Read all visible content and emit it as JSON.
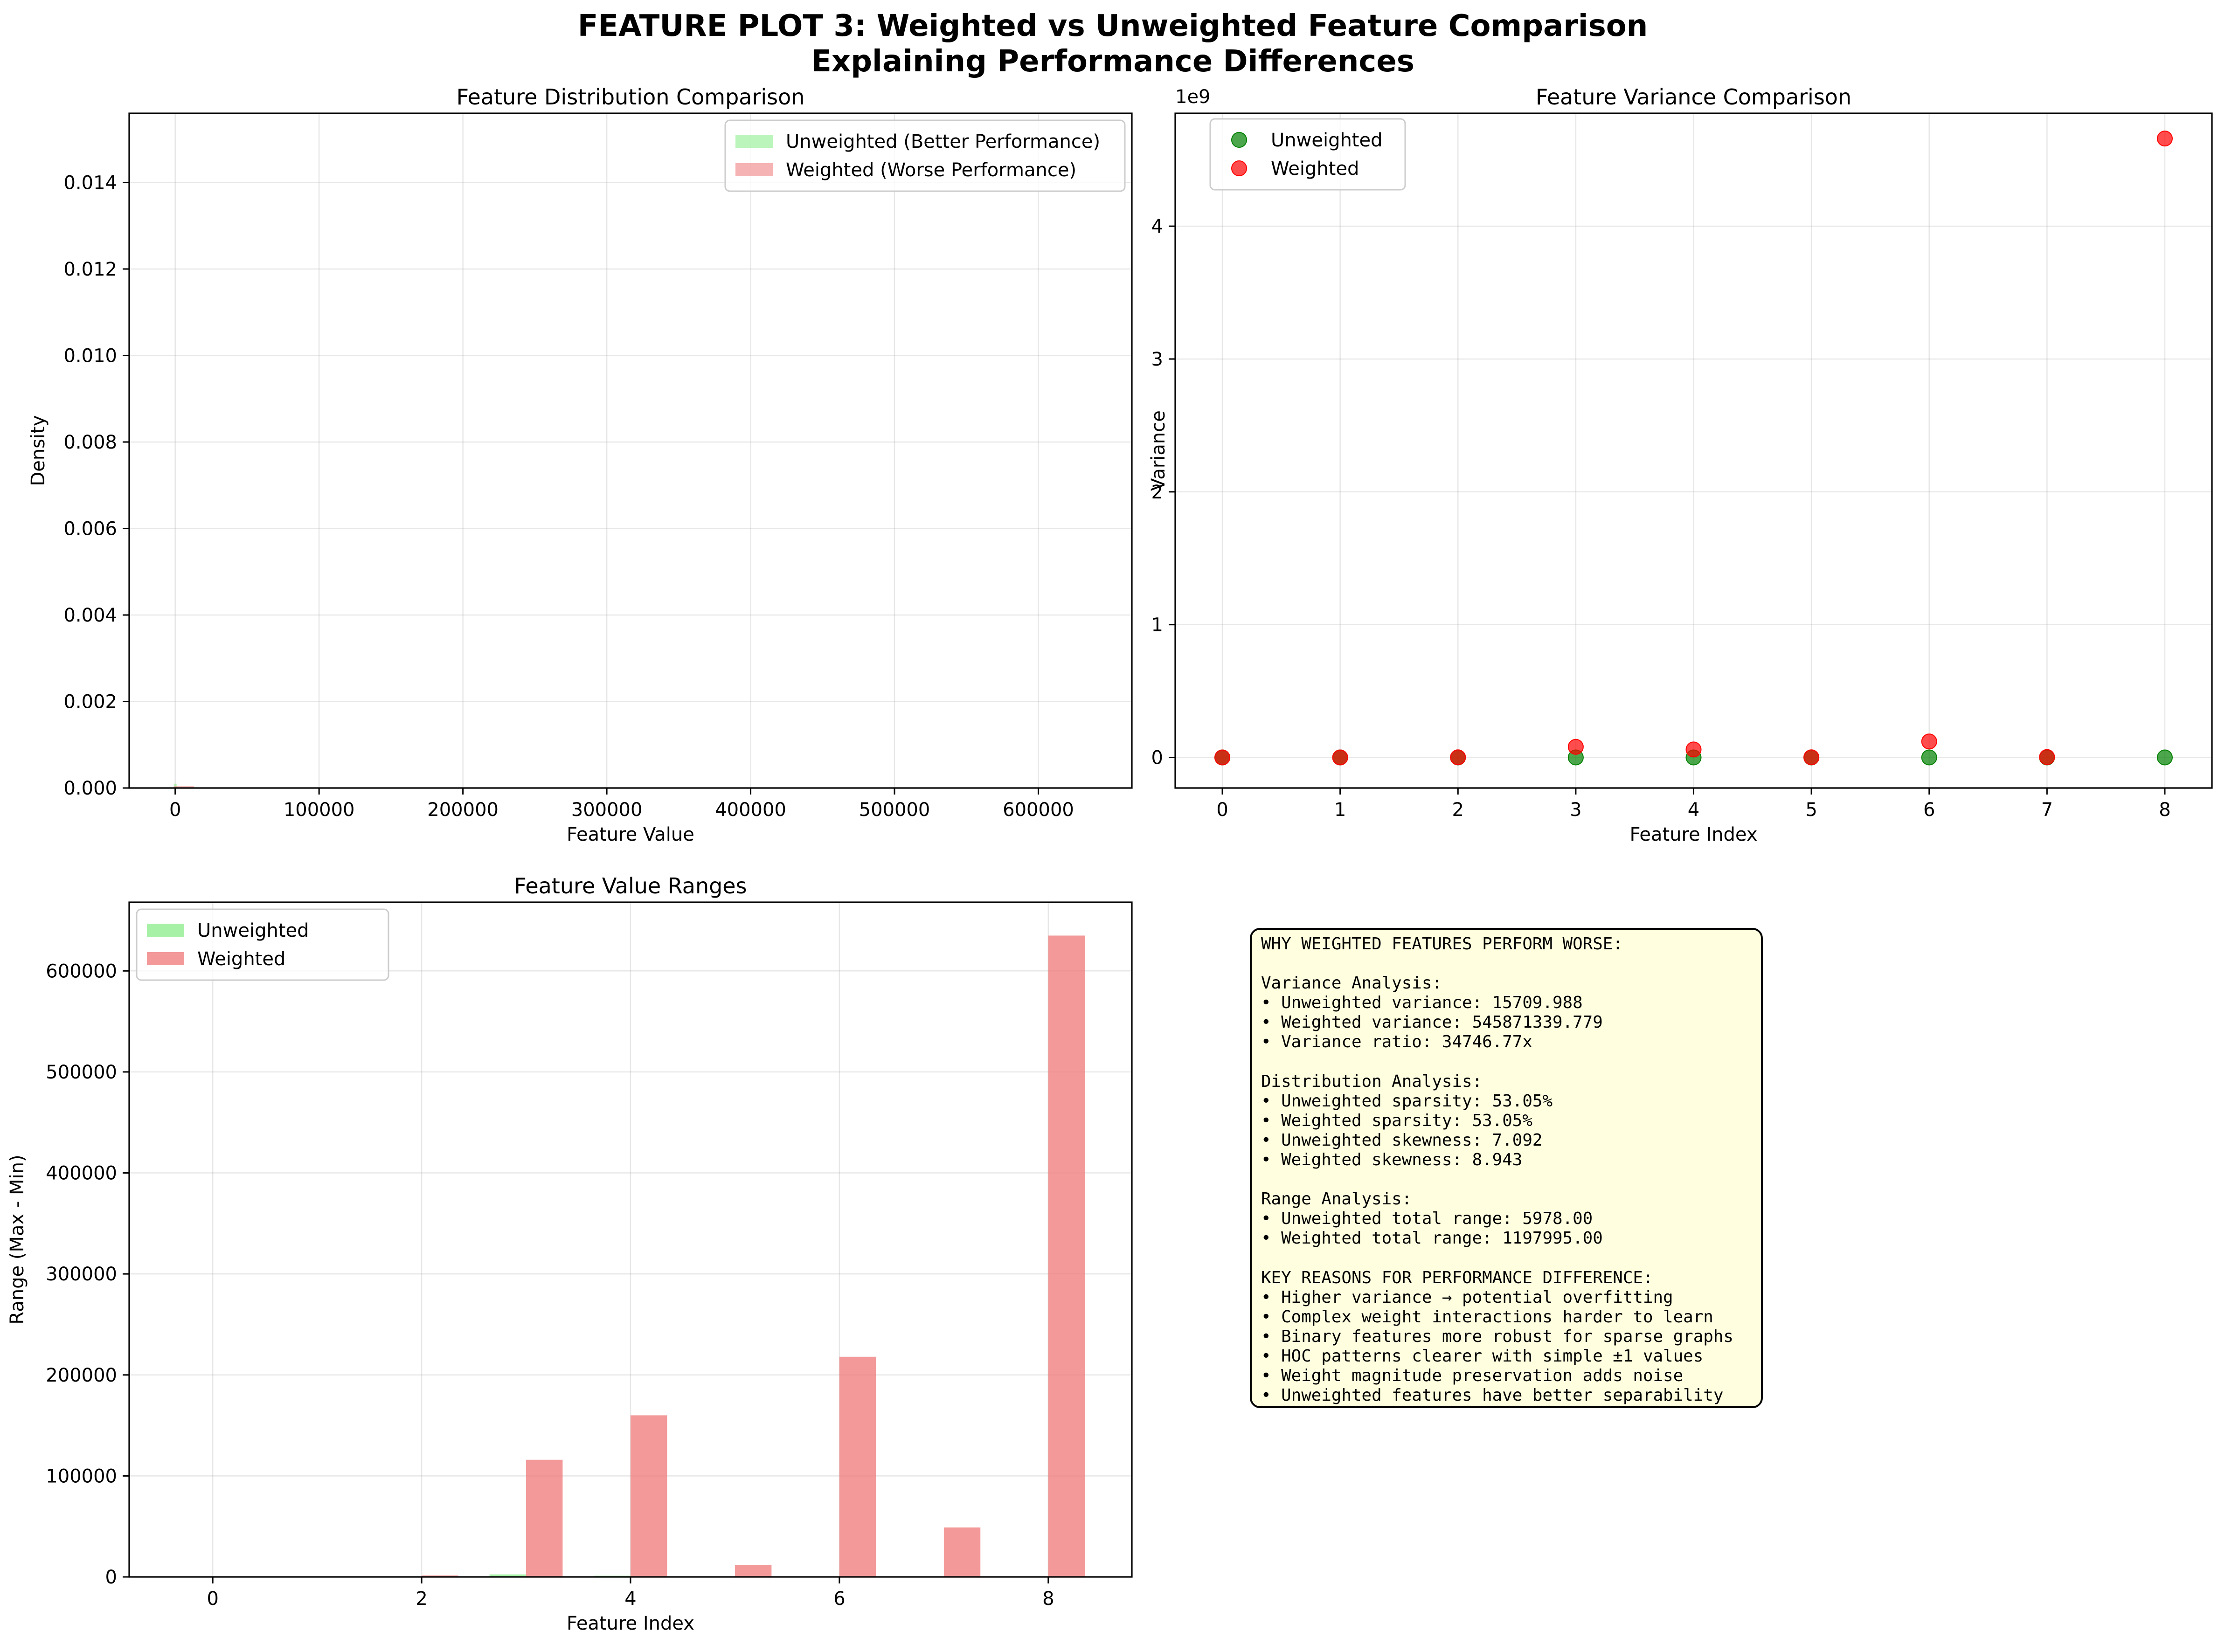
{
  "figure": {
    "title_line1": "FEATURE PLOT 3: Weighted vs Unweighted Feature Comparison",
    "title_line2": "Explaining Performance Differences"
  },
  "colors": {
    "unweighted_hist": "#90ee90",
    "weighted_hist": "#f08080",
    "unweighted_point": "#008000",
    "weighted_point": "#ff0000",
    "grid": "#b0b0b0",
    "note_background": "#ffffe0"
  },
  "chart_data": [
    {
      "id": "distribution",
      "type": "bar",
      "title": "Feature Distribution Comparison",
      "xlabel": "Feature Value",
      "ylabel": "Density",
      "xlim": [
        -32000,
        665000
      ],
      "ylim": [
        0,
        0.0156
      ],
      "xticks": [
        0,
        100000,
        200000,
        300000,
        400000,
        500000,
        600000
      ],
      "yticks": [
        0.0,
        0.002,
        0.004,
        0.006,
        0.008,
        0.01,
        0.012,
        0.014
      ],
      "ytick_labels": [
        "0.000",
        "0.002",
        "0.004",
        "0.006",
        "0.008",
        "0.010",
        "0.012",
        "0.014"
      ],
      "grid": true,
      "legend_position": "top-right",
      "series": [
        {
          "name": "Unweighted (Better Performance)",
          "bins": [
            {
              "x0": -1000,
              "x1": 1000,
              "density": 0.0001
            }
          ]
        },
        {
          "name": "Weighted (Worse Performance)",
          "bins": [
            {
              "x0": -1000,
              "x1": 13000,
              "density": 4e-05
            }
          ]
        }
      ]
    },
    {
      "id": "variance",
      "type": "scatter",
      "title": "Feature Variance Comparison",
      "xlabel": "Feature Index",
      "ylabel": "Variance",
      "offset_label": "1e9",
      "xlim": [
        -0.4,
        8.4
      ],
      "ylim": [
        -0.23,
        4.85
      ],
      "xticks": [
        0,
        1,
        2,
        3,
        4,
        5,
        6,
        7,
        8
      ],
      "yticks": [
        0,
        1,
        2,
        3,
        4
      ],
      "grid": true,
      "legend_position": "top-left",
      "series": [
        {
          "name": "Unweighted",
          "x": [
            0,
            1,
            2,
            3,
            4,
            5,
            6,
            7,
            8
          ],
          "y": [
            0,
            0,
            0,
            0,
            0,
            0,
            0,
            0,
            0
          ]
        },
        {
          "name": "Weighted",
          "x": [
            0,
            1,
            2,
            3,
            4,
            5,
            6,
            7,
            8
          ],
          "y": [
            0,
            0,
            0.001,
            0.08,
            0.06,
            0.001,
            0.12,
            0.003,
            4.66
          ]
        }
      ]
    },
    {
      "id": "ranges",
      "type": "bar",
      "title": "Feature Value Ranges",
      "xlabel": "Feature Index",
      "ylabel": "Range (Max - Min)",
      "xlim": [
        -0.8,
        8.8
      ],
      "ylim": [
        0,
        668000
      ],
      "xticks": [
        0,
        2,
        4,
        6,
        8
      ],
      "yticks": [
        0,
        100000,
        200000,
        300000,
        400000,
        500000,
        600000
      ],
      "grid": true,
      "legend_position": "top-left",
      "categories": [
        0,
        1,
        2,
        3,
        4,
        5,
        6,
        7,
        8
      ],
      "series": [
        {
          "name": "Unweighted",
          "values": [
            60,
            100,
            300,
            2500,
            1200,
            300,
            600,
            200,
            700
          ]
        },
        {
          "name": "Weighted",
          "values": [
            100,
            300,
            1500,
            116000,
            160000,
            12000,
            218000,
            49000,
            635000
          ]
        }
      ]
    }
  ],
  "note": {
    "lines": [
      "WHY WEIGHTED FEATURES PERFORM WORSE:",
      "",
      "Variance Analysis:",
      "• Unweighted variance: 15709.988",
      "• Weighted variance: 545871339.779",
      "• Variance ratio: 34746.77x",
      "",
      "Distribution Analysis:",
      "• Unweighted sparsity: 53.05%",
      "• Weighted sparsity: 53.05%",
      "• Unweighted skewness: 7.092",
      "• Weighted skewness: 8.943",
      "",
      "Range Analysis:",
      "• Unweighted total range: 5978.00",
      "• Weighted total range: 1197995.00",
      "",
      "KEY REASONS FOR PERFORMANCE DIFFERENCE:",
      "• Higher variance → potential overfitting",
      "• Complex weight interactions harder to learn",
      "• Binary features more robust for sparse graphs",
      "• HOC patterns clearer with simple ±1 values",
      "• Weight magnitude preservation adds noise",
      "• Unweighted features have better separability"
    ]
  }
}
